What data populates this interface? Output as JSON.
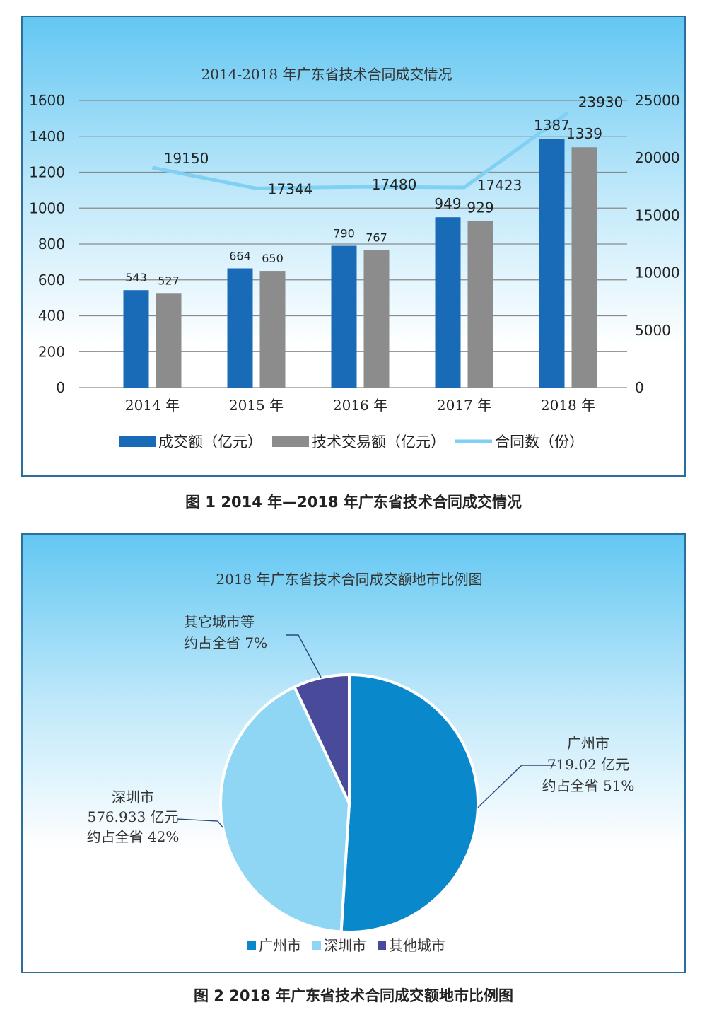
{
  "chart_data": [
    {
      "type": "bar",
      "title": "2014-2018 年广东省技术合同成交情况",
      "categories": [
        "2014 年",
        "2015 年",
        "2016 年",
        "2017 年",
        "2018 年"
      ],
      "series": [
        {
          "name": "成交额（亿元）",
          "type": "bar",
          "axis": "left",
          "color": "#1a6bb7",
          "values": [
            543,
            664,
            790,
            949,
            1387
          ]
        },
        {
          "name": "技术交易额（亿元）",
          "type": "bar",
          "axis": "left",
          "color": "#8c8c8c",
          "values": [
            527,
            650,
            767,
            929,
            1339
          ]
        },
        {
          "name": "合同数（份）",
          "type": "line",
          "axis": "right",
          "color": "#7fd0f2",
          "values": [
            19150,
            17344,
            17480,
            17423,
            23930
          ]
        }
      ],
      "y_left": {
        "ylim": [
          0,
          1600
        ],
        "ticks": [
          0,
          200,
          400,
          600,
          800,
          1000,
          1200,
          1400,
          1600
        ]
      },
      "y_right": {
        "ylim": [
          0,
          25000
        ],
        "ticks": [
          0,
          5000,
          10000,
          15000,
          20000,
          25000
        ]
      },
      "grid": true,
      "legend_position": "bottom"
    },
    {
      "type": "pie",
      "title": "2018 年广东省技术合同成交额地市比例图",
      "slices": [
        {
          "name": "广州市",
          "share": 51,
          "color": "#0a88cc",
          "label_lines": [
            "广州市",
            "719.02 亿元",
            "约占全省 51%"
          ]
        },
        {
          "name": "深圳市",
          "share": 42,
          "color": "#8fd6f5",
          "label_lines": [
            "深圳市",
            "576.933 亿元",
            "约占全省 42%"
          ]
        },
        {
          "name": "其他城市",
          "share": 7,
          "color": "#4a4a9a",
          "label_lines": [
            "其它城市等",
            "约占全省 7%"
          ]
        }
      ],
      "legend_position": "bottom"
    }
  ],
  "captions": {
    "fig1": "图 1   2014 年—2018 年广东省技术合同成交情况",
    "fig2": "图 2  2018 年广东省技术合同成交额地市比例图"
  }
}
